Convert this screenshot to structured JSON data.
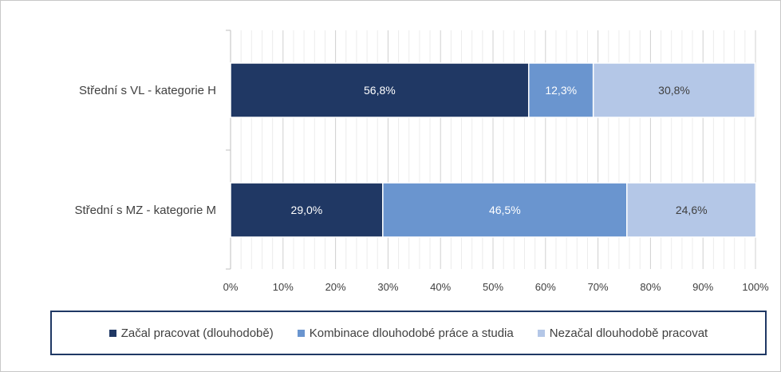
{
  "chart_data": {
    "type": "bar",
    "orientation": "horizontal",
    "stacked": true,
    "percent_stacked": true,
    "categories": [
      "Střední s VL - kategorie H",
      "Střední s MZ - kategorie M"
    ],
    "series": [
      {
        "name": "Začal pracovat (dlouhodobě)",
        "color": "#203864",
        "label_color": "#ffffff",
        "values": [
          56.8,
          29.0
        ],
        "labels": [
          "56,8%",
          "29,0%"
        ]
      },
      {
        "name": "Kombinace dlouhodobé práce a studia",
        "color": "#6a95cf",
        "label_color": "#ffffff",
        "values": [
          12.3,
          46.5
        ],
        "labels": [
          "12,3%",
          "46,5%"
        ]
      },
      {
        "name": "Nezačal dlouhodobě pracovat",
        "color": "#b4c7e7",
        "label_color": "#404040",
        "values": [
          30.8,
          24.6
        ],
        "labels": [
          "30,8%",
          "24,6%"
        ]
      }
    ],
    "xlim": [
      0,
      100
    ],
    "xticks": [
      0,
      10,
      20,
      30,
      40,
      50,
      60,
      70,
      80,
      90,
      100
    ],
    "xtick_labels": [
      "0%",
      "10%",
      "20%",
      "30%",
      "40%",
      "50%",
      "60%",
      "70%",
      "80%",
      "90%",
      "100%"
    ],
    "grid": true,
    "legend_position": "bottom"
  }
}
